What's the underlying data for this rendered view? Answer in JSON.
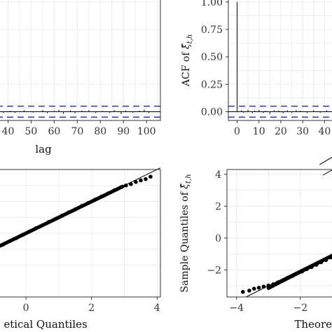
{
  "chart_data": [
    {
      "id": "acf-left",
      "type": "bar",
      "xlabel": "lag",
      "ylabel": "",
      "x_ticks": [
        40,
        50,
        60,
        70,
        80,
        90,
        100
      ],
      "xlim": [
        35,
        106
      ],
      "ylim": [
        -0.08,
        1.05
      ],
      "y_ticks": [],
      "reference_lines": {
        "zero": 0.0,
        "conf_upper": 0.05,
        "conf_lower": -0.05
      },
      "grid": true,
      "lags": [
        36,
        38,
        41,
        43,
        47,
        51,
        55,
        57,
        60,
        62,
        64,
        67,
        69,
        72,
        75,
        78,
        81,
        84,
        86,
        89,
        91,
        94,
        97,
        99,
        101
      ],
      "acf": [
        0.01,
        -0.012,
        0.008,
        -0.01,
        0.012,
        -0.008,
        0.015,
        -0.014,
        0.01,
        0.018,
        -0.02,
        0.012,
        -0.015,
        0.01,
        0.014,
        -0.012,
        0.008,
        -0.01,
        0.016,
        -0.022,
        0.012,
        -0.01,
        0.009,
        0.02,
        -0.012
      ]
    },
    {
      "id": "acf-right",
      "type": "bar",
      "xlabel": "",
      "ylabel_main": "ACF of ",
      "ylabel_symbol": "ξ̂",
      "ylabel_subscript": "t,h",
      "x_ticks": [
        0,
        10,
        20,
        30,
        40
      ],
      "xlim": [
        -4,
        45
      ],
      "ylim": [
        -0.08,
        1.05
      ],
      "y_ticks": [
        "0.00",
        "0.25",
        "0.50",
        "0.75",
        "1.00"
      ],
      "reference_lines": {
        "zero": 0.0,
        "conf_upper": 0.05,
        "conf_lower": -0.05
      },
      "grid": true,
      "lags": [
        0,
        2,
        3,
        5,
        7,
        8,
        10,
        12,
        13,
        15,
        17,
        19,
        21,
        23,
        25,
        27,
        29,
        32,
        35,
        38,
        41,
        44
      ],
      "acf": [
        1.0,
        0.012,
        -0.01,
        0.018,
        -0.014,
        0.01,
        0.015,
        -0.012,
        0.009,
        -0.02,
        0.012,
        0.01,
        -0.015,
        0.013,
        -0.01,
        0.016,
        0.01,
        -0.012,
        0.014,
        -0.01,
        0.012,
        -0.014
      ]
    },
    {
      "id": "qq-left",
      "type": "scatter",
      "xlabel": "etical Quantiles",
      "ylabel": "",
      "x_ticks": [
        0,
        2,
        4
      ],
      "xlim": [
        -0.9,
        4.1
      ],
      "ylim": [
        -4,
        4
      ],
      "y_ticks": [],
      "grid": true,
      "reference_line": {
        "intercept": 0.0,
        "slope": 1.0
      },
      "points": [
        [
          -0.9,
          -0.92
        ],
        [
          -0.7,
          -0.71
        ],
        [
          -0.5,
          -0.5
        ],
        [
          -0.3,
          -0.31
        ],
        [
          -0.1,
          -0.1
        ],
        [
          0.1,
          0.1
        ],
        [
          0.3,
          0.31
        ],
        [
          0.5,
          0.5
        ],
        [
          0.7,
          0.71
        ],
        [
          0.9,
          0.9
        ],
        [
          1.1,
          1.11
        ],
        [
          1.3,
          1.31
        ],
        [
          1.5,
          1.5
        ],
        [
          1.7,
          1.71
        ],
        [
          1.9,
          1.9
        ],
        [
          2.1,
          2.1
        ],
        [
          2.3,
          2.3
        ],
        [
          2.5,
          2.49
        ],
        [
          2.7,
          2.7
        ],
        [
          2.9,
          2.89
        ],
        [
          3.05,
          3.0
        ],
        [
          3.2,
          3.08
        ],
        [
          3.35,
          3.22
        ],
        [
          3.5,
          3.32
        ],
        [
          3.65,
          3.4
        ],
        [
          3.8,
          3.55
        ]
      ]
    },
    {
      "id": "qq-right",
      "type": "scatter",
      "xlabel": "Theore",
      "ylabel_main": "Sample Quantiles of ",
      "ylabel_symbol": "ξ̂",
      "ylabel_subscript": "t,h",
      "x_ticks": [
        -4,
        -2
      ],
      "xlim": [
        -4.3,
        -0.9
      ],
      "ylim": [
        -3.7,
        4.3
      ],
      "y_ticks": [
        -2,
        0,
        2,
        4
      ],
      "grid": true,
      "reference_line": {
        "intercept": 0.0,
        "slope": 1.0
      },
      "points": [
        [
          -3.8,
          -3.38
        ],
        [
          -3.6,
          -3.3
        ],
        [
          -3.45,
          -3.18
        ],
        [
          -3.3,
          -3.12
        ],
        [
          -3.15,
          -3.05
        ],
        [
          -3.0,
          -2.98
        ],
        [
          -2.85,
          -2.9
        ],
        [
          -2.7,
          -2.78
        ],
        [
          -2.55,
          -2.65
        ],
        [
          -2.4,
          -2.5
        ],
        [
          -2.25,
          -2.38
        ],
        [
          -2.1,
          -2.22
        ],
        [
          -1.95,
          -2.1
        ],
        [
          -1.8,
          -1.95
        ],
        [
          -1.65,
          -1.82
        ],
        [
          -1.5,
          -1.68
        ],
        [
          -1.35,
          -1.52
        ],
        [
          -1.2,
          -1.38
        ],
        [
          -1.05,
          -1.22
        ],
        [
          -0.95,
          -1.1
        ]
      ]
    }
  ]
}
